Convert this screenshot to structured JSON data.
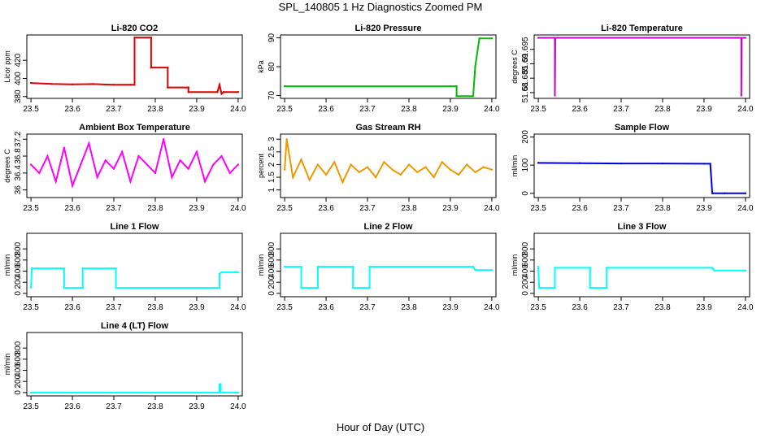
{
  "figure": {
    "title": "SPL_140805  1 Hz Diagnostics Zoomed PM",
    "xlabel": "Hour of Day (UTC)"
  },
  "chart_data": [
    {
      "type": "line",
      "title": "Li-820 CO2",
      "ylabel": "Licor ppm",
      "color": "#dd0000",
      "xlim": [
        23.49,
        24.01
      ],
      "ylim": [
        378,
        448
      ],
      "xticks": [
        23.5,
        23.6,
        23.7,
        23.8,
        23.9,
        24.0
      ],
      "yticks": [
        380,
        400,
        420
      ],
      "x": [
        23.5,
        23.55,
        23.6,
        23.65,
        23.7,
        23.74,
        23.75,
        23.75,
        23.79,
        23.79,
        23.83,
        23.83,
        23.88,
        23.88,
        23.95,
        23.955,
        23.96,
        23.965,
        24.0
      ],
      "y": [
        395,
        394,
        393.5,
        393.8,
        393,
        393,
        393,
        445,
        445,
        412,
        412,
        390,
        390,
        385,
        385,
        393,
        383,
        385,
        385
      ]
    },
    {
      "type": "line",
      "title": "Li-820 Pressure",
      "ylabel": "kPa",
      "color": "#00bb00",
      "xlim": [
        23.49,
        24.01
      ],
      "ylim": [
        69,
        91
      ],
      "xticks": [
        23.5,
        23.6,
        23.7,
        23.8,
        23.9,
        24.0
      ],
      "yticks": [
        70,
        80,
        90
      ],
      "x": [
        23.5,
        23.9,
        23.915,
        23.915,
        23.955,
        23.96,
        23.97,
        24.0
      ],
      "y": [
        73.2,
        73.2,
        73.2,
        69.8,
        69.8,
        80,
        89.8,
        89.8
      ]
    },
    {
      "type": "line",
      "title": "Li-820 Temperature",
      "ylabel": "degrees C",
      "color": "#cc00cc",
      "xlim": [
        23.49,
        24.01
      ],
      "ylim": [
        51.678,
        51.7
      ],
      "xticks": [
        23.5,
        23.6,
        23.7,
        23.8,
        23.9,
        24.0
      ],
      "yticks": [
        51.68,
        51.685,
        51.69,
        51.695
      ],
      "x": [
        23.5,
        23.54,
        23.54,
        23.541,
        23.99,
        23.99,
        23.991,
        24.0
      ],
      "y": [
        51.699,
        51.699,
        51.679,
        51.699,
        51.699,
        51.679,
        51.699,
        51.699
      ]
    },
    {
      "type": "line",
      "title": "Ambient Box Temperature",
      "ylabel": "degrees C",
      "color": "#ff00ff",
      "xlim": [
        23.49,
        24.01
      ],
      "ylim": [
        35.82,
        37.32
      ],
      "xticks": [
        23.5,
        23.6,
        23.7,
        23.8,
        23.9,
        24.0
      ],
      "yticks": [
        36.0,
        36.4,
        36.8,
        37.2
      ],
      "x": [
        23.5,
        23.52,
        23.54,
        23.56,
        23.58,
        23.6,
        23.62,
        23.64,
        23.66,
        23.68,
        23.7,
        23.72,
        23.74,
        23.76,
        23.78,
        23.8,
        23.82,
        23.84,
        23.86,
        23.88,
        23.9,
        23.92,
        23.94,
        23.96,
        23.98,
        24.0
      ],
      "y": [
        36.6,
        36.4,
        36.8,
        36.2,
        37.0,
        36.1,
        36.6,
        37.1,
        36.3,
        36.7,
        36.5,
        36.9,
        36.2,
        36.8,
        36.6,
        36.4,
        37.2,
        36.3,
        36.7,
        36.5,
        36.9,
        36.2,
        36.6,
        36.8,
        36.4,
        36.6
      ]
    },
    {
      "type": "line",
      "title": "Gas Stream RH",
      "ylabel": "percent",
      "color": "#ee9900",
      "xlim": [
        23.49,
        24.01
      ],
      "ylim": [
        0.7,
        3.2
      ],
      "xticks": [
        23.5,
        23.6,
        23.7,
        23.8,
        23.9,
        24.0
      ],
      "yticks": [
        1.0,
        1.5,
        2.0,
        2.5,
        3.0
      ],
      "x": [
        23.5,
        23.505,
        23.52,
        23.54,
        23.56,
        23.58,
        23.6,
        23.62,
        23.64,
        23.66,
        23.68,
        23.7,
        23.72,
        23.74,
        23.76,
        23.78,
        23.8,
        23.82,
        23.84,
        23.86,
        23.88,
        23.9,
        23.92,
        23.94,
        23.96,
        23.98,
        24.0
      ],
      "y": [
        1.8,
        3.0,
        1.5,
        2.2,
        1.4,
        2.0,
        1.6,
        2.1,
        1.3,
        2.0,
        1.7,
        1.9,
        1.5,
        2.1,
        1.8,
        1.6,
        2.0,
        1.7,
        1.9,
        1.5,
        2.1,
        1.8,
        1.6,
        2.0,
        1.7,
        1.9,
        1.8
      ]
    },
    {
      "type": "line",
      "title": "Sample Flow",
      "ylabel": "ml/min",
      "color": "#0000dd",
      "xlim": [
        23.49,
        24.01
      ],
      "ylim": [
        -15,
        210
      ],
      "xticks": [
        23.5,
        23.6,
        23.7,
        23.8,
        23.9,
        24.0
      ],
      "yticks": [
        0,
        100,
        200
      ],
      "x": [
        23.5,
        23.6,
        23.7,
        23.8,
        23.9,
        23.915,
        23.92,
        23.95,
        24.0
      ],
      "y": [
        108,
        107,
        106,
        106,
        105,
        105,
        0,
        0,
        0
      ]
    },
    {
      "type": "line",
      "title": "Line 1 Flow",
      "ylabel": "ml/min",
      "color": "#00ffff",
      "xlim": [
        23.49,
        24.01
      ],
      "ylim": [
        -60,
        1080
      ],
      "xticks": [
        23.5,
        23.6,
        23.7,
        23.8,
        23.9,
        24.0
      ],
      "yticks": [
        0,
        200,
        400,
        600,
        800
      ],
      "x": [
        23.5,
        23.502,
        23.58,
        23.58,
        23.625,
        23.625,
        23.705,
        23.705,
        23.955,
        23.955,
        23.96,
        24.0
      ],
      "y": [
        100,
        450,
        450,
        100,
        100,
        450,
        450,
        100,
        100,
        350,
        380,
        380
      ]
    },
    {
      "type": "line",
      "title": "Line 2 Flow",
      "ylabel": "ml/min",
      "color": "#00ffff",
      "xlim": [
        23.49,
        24.01
      ],
      "ylim": [
        -60,
        1080
      ],
      "xticks": [
        23.5,
        23.6,
        23.7,
        23.8,
        23.9,
        24.0
      ],
      "yticks": [
        0,
        200,
        400,
        600,
        800
      ],
      "x": [
        23.5,
        23.54,
        23.54,
        23.58,
        23.58,
        23.665,
        23.665,
        23.705,
        23.705,
        23.955,
        23.96,
        24.0
      ],
      "y": [
        480,
        480,
        100,
        100,
        480,
        480,
        100,
        100,
        480,
        480,
        420,
        420
      ]
    },
    {
      "type": "line",
      "title": "Line 3 Flow",
      "ylabel": "ml/min",
      "color": "#00ffff",
      "xlim": [
        23.49,
        24.01
      ],
      "ylim": [
        -60,
        1080
      ],
      "xticks": [
        23.5,
        23.6,
        23.7,
        23.8,
        23.9,
        24.0
      ],
      "yticks": [
        0,
        200,
        400,
        600,
        800
      ],
      "x": [
        23.5,
        23.502,
        23.54,
        23.54,
        23.625,
        23.625,
        23.665,
        23.665,
        23.92,
        23.925,
        24.0
      ],
      "y": [
        480,
        100,
        100,
        460,
        460,
        100,
        100,
        460,
        460,
        410,
        410
      ]
    },
    {
      "type": "line",
      "title": "Line 4 (LT) Flow",
      "ylabel": "ml/min",
      "color": "#00ffff",
      "xlim": [
        23.49,
        24.01
      ],
      "ylim": [
        -60,
        1080
      ],
      "xticks": [
        23.5,
        23.6,
        23.7,
        23.8,
        23.9,
        24.0
      ],
      "yticks": [
        0,
        200,
        400,
        600,
        800
      ],
      "x": [
        23.5,
        23.955,
        23.955,
        23.958,
        23.958,
        24.0
      ],
      "y": [
        0,
        0,
        150,
        150,
        0,
        0
      ]
    }
  ]
}
